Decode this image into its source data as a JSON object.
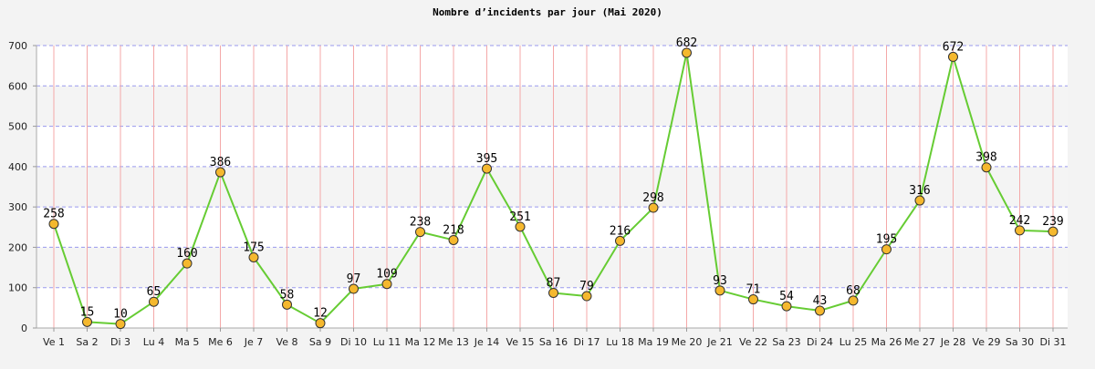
{
  "chart_data": {
    "type": "line",
    "title": "Nombre d’incidents par jour (Mai 2020)",
    "xlabel": "",
    "ylabel": "",
    "ylim": [
      0,
      700
    ],
    "yticks": [
      0,
      100,
      200,
      300,
      400,
      500,
      600,
      700
    ],
    "categories": [
      "Ve 1",
      "Sa 2",
      "Di 3",
      "Lu 4",
      "Ma 5",
      "Me 6",
      "Je 7",
      "Ve 8",
      "Sa 9",
      "Di 10",
      "Lu 11",
      "Ma 12",
      "Me 13",
      "Je 14",
      "Ve 15",
      "Sa 16",
      "Di 17",
      "Lu 18",
      "Ma 19",
      "Me 20",
      "Je 21",
      "Ve 22",
      "Sa 23",
      "Di 24",
      "Lu 25",
      "Ma 26",
      "Me 27",
      "Je 28",
      "Ve 29",
      "Sa 30",
      "Di 31"
    ],
    "series": [
      {
        "values": [
          258,
          15,
          10,
          65,
          160,
          386,
          175,
          58,
          12,
          97,
          109,
          238,
          218,
          395,
          251,
          87,
          79,
          216,
          298,
          682,
          93,
          71,
          54,
          43,
          68,
          195,
          316,
          672,
          398,
          242,
          239
        ]
      }
    ],
    "grid": true,
    "legend": "none",
    "colors": {
      "line": "#66cc33",
      "marker_fill": "#f5b82e",
      "marker_stroke": "#333333",
      "vgrid": "#f4a8a8",
      "hgrid": "#9999ee",
      "plot_bg_a": "#ffffff",
      "plot_bg_b": "#f4f4f4",
      "page_bg": "#f3f3f3"
    }
  }
}
